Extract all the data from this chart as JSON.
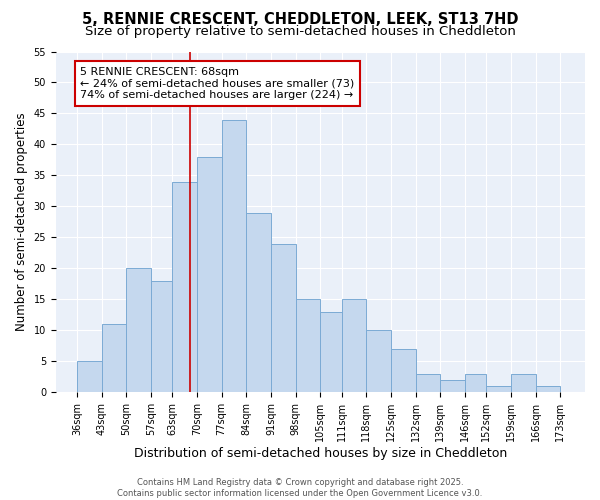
{
  "title": "5, RENNIE CRESCENT, CHEDDLETON, LEEK, ST13 7HD",
  "subtitle": "Size of property relative to semi-detached houses in Cheddleton",
  "xlabel": "Distribution of semi-detached houses by size in Cheddleton",
  "ylabel": "Number of semi-detached properties",
  "bar_lefts": [
    36,
    43,
    50,
    57,
    63,
    70,
    77,
    84,
    91,
    98,
    105,
    111,
    118,
    125,
    132,
    139,
    146,
    152,
    159,
    166
  ],
  "bar_rights": [
    43,
    50,
    57,
    63,
    70,
    77,
    84,
    91,
    98,
    105,
    111,
    118,
    125,
    132,
    139,
    146,
    152,
    159,
    166,
    173
  ],
  "bar_heights": [
    5,
    11,
    20,
    18,
    34,
    38,
    44,
    29,
    24,
    15,
    13,
    15,
    10,
    7,
    3,
    2,
    3,
    1,
    3,
    1
  ],
  "bar_color": "#c5d8ee",
  "bar_edge_color": "#7baad4",
  "property_size": 68,
  "red_line_color": "#cc0000",
  "annotation_line1": "5 RENNIE CRESCENT: 68sqm",
  "annotation_line2": "← 24% of semi-detached houses are smaller (73)",
  "annotation_line3": "74% of semi-detached houses are larger (224) →",
  "annotation_box_color": "#ffffff",
  "annotation_box_edge_color": "#cc0000",
  "ylim": [
    0,
    55
  ],
  "yticks": [
    0,
    5,
    10,
    15,
    20,
    25,
    30,
    35,
    40,
    45,
    50,
    55
  ],
  "tick_labels": [
    "36sqm",
    "43sqm",
    "50sqm",
    "57sqm",
    "63sqm",
    "70sqm",
    "77sqm",
    "84sqm",
    "91sqm",
    "98sqm",
    "105sqm",
    "111sqm",
    "118sqm",
    "125sqm",
    "132sqm",
    "139sqm",
    "146sqm",
    "152sqm",
    "159sqm",
    "166sqm",
    "173sqm"
  ],
  "tick_positions": [
    36,
    43,
    50,
    57,
    63,
    70,
    77,
    84,
    91,
    98,
    105,
    111,
    118,
    125,
    132,
    139,
    146,
    152,
    159,
    166,
    173
  ],
  "background_color": "#eaf0f9",
  "grid_color": "#ffffff",
  "footer_text": "Contains HM Land Registry data © Crown copyright and database right 2025.\nContains public sector information licensed under the Open Government Licence v3.0.",
  "title_fontsize": 10.5,
  "subtitle_fontsize": 9.5,
  "xlabel_fontsize": 9,
  "ylabel_fontsize": 8.5,
  "tick_fontsize": 7,
  "annotation_fontsize": 8,
  "footer_fontsize": 6
}
